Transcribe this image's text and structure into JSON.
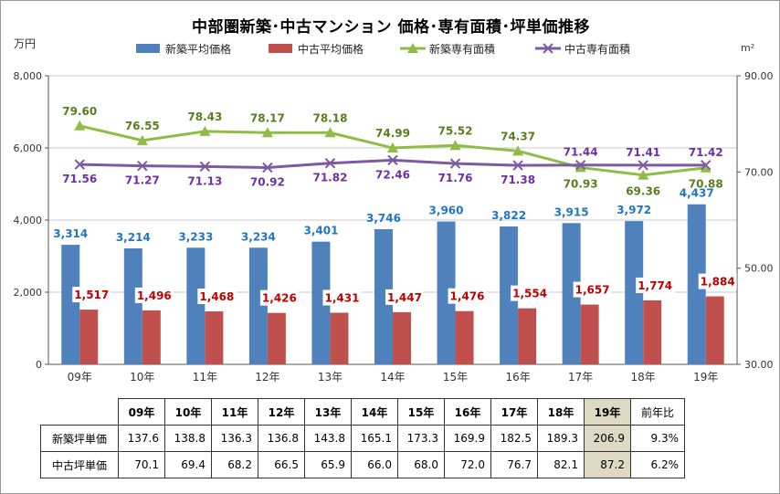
{
  "chart_data": {
    "type": "bar+line",
    "title": "中部圏新築･中古マンション 価格･専有面積･坪単価推移",
    "categories": [
      "09年",
      "10年",
      "11年",
      "12年",
      "13年",
      "14年",
      "15年",
      "16年",
      "17年",
      "18年",
      "19年"
    ],
    "y_left": {
      "unit": "万円",
      "ylim": [
        0,
        8000
      ],
      "ticks": [
        "0",
        "2,000",
        "4,000",
        "6,000",
        "8,000"
      ]
    },
    "y_right": {
      "unit": "m²",
      "ylim": [
        30,
        90
      ],
      "ticks": [
        "30.00",
        "50.00",
        "70.00",
        "90.00"
      ]
    },
    "series": [
      {
        "name": "新築平均価格",
        "kind": "bar",
        "axis": "left",
        "color": "#4f81bd",
        "label_color": "#1f77c4",
        "values": [
          3314,
          3214,
          3233,
          3234,
          3401,
          3746,
          3960,
          3822,
          3915,
          3972,
          4437
        ],
        "labels": [
          "3,314",
          "3,214",
          "3,233",
          "3,234",
          "3,401",
          "3,746",
          "3,960",
          "3,822",
          "3,915",
          "3,972",
          "4,437"
        ]
      },
      {
        "name": "中古平均価格",
        "kind": "bar",
        "axis": "left",
        "color": "#c0504d",
        "label_color": "#c00000",
        "values": [
          1517,
          1496,
          1468,
          1426,
          1431,
          1447,
          1476,
          1554,
          1657,
          1774,
          1884
        ],
        "labels": [
          "1,517",
          "1,496",
          "1,468",
          "1,426",
          "1,431",
          "1,447",
          "1,476",
          "1,554",
          "1,657",
          "1,774",
          "1,884"
        ]
      },
      {
        "name": "新築専有面積",
        "kind": "line",
        "axis": "right",
        "color": "#8fbc45",
        "label_color": "#5a7d1c",
        "marker": "triangle",
        "values": [
          79.6,
          76.55,
          78.43,
          78.17,
          78.18,
          74.99,
          75.52,
          74.37,
          70.93,
          69.36,
          70.88
        ],
        "labels": [
          "79.60",
          "76.55",
          "78.43",
          "78.17",
          "78.18",
          "74.99",
          "75.52",
          "74.37",
          "70.93",
          "69.36",
          "70.88"
        ]
      },
      {
        "name": "中古専有面積",
        "kind": "line",
        "axis": "right",
        "color": "#7e5aa2",
        "label_color": "#7030a0",
        "marker": "x",
        "values": [
          71.56,
          71.27,
          71.13,
          70.92,
          71.82,
          72.46,
          71.76,
          71.38,
          71.44,
          71.41,
          71.42
        ],
        "labels": [
          "71.56",
          "71.27",
          "71.13",
          "70.92",
          "71.82",
          "72.46",
          "71.76",
          "71.38",
          "71.44",
          "71.41",
          "71.42"
        ]
      }
    ],
    "legend": "top",
    "grid": true
  },
  "table": {
    "headers": [
      "09年",
      "10年",
      "11年",
      "12年",
      "13年",
      "14年",
      "15年",
      "16年",
      "17年",
      "18年",
      "19年"
    ],
    "yoy_header": "前年比",
    "rows": [
      {
        "label": "新築坪単価",
        "values": [
          "137.6",
          "138.8",
          "136.3",
          "136.8",
          "143.8",
          "165.1",
          "173.3",
          "169.9",
          "182.5",
          "189.3",
          "206.9"
        ],
        "yoy": "9.3%"
      },
      {
        "label": "中古坪単価",
        "values": [
          "70.1",
          "69.4",
          "68.2",
          "66.5",
          "65.9",
          "66.0",
          "68.0",
          "72.0",
          "76.7",
          "82.1",
          "87.2"
        ],
        "yoy": "6.2%"
      }
    ],
    "highlight_column": "19年"
  }
}
